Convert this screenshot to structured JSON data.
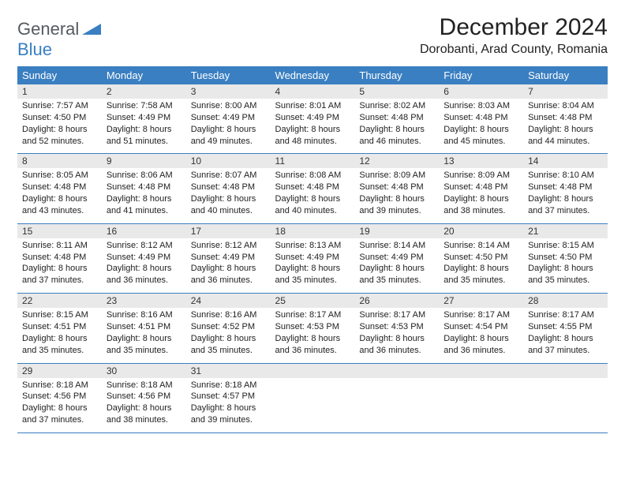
{
  "logo": {
    "word1": "General",
    "word2": "Blue"
  },
  "title": "December 2024",
  "location": "Dorobanti, Arad County, Romania",
  "colors": {
    "header_bg": "#3a7fc1",
    "header_text": "#ffffff",
    "daynum_bg": "#e9e9e9",
    "cell_border": "#3a7fc1",
    "logo_gray": "#555a5f",
    "logo_blue": "#3a7fc1"
  },
  "dayHeaders": [
    "Sunday",
    "Monday",
    "Tuesday",
    "Wednesday",
    "Thursday",
    "Friday",
    "Saturday"
  ],
  "weeks": [
    {
      "nums": [
        "1",
        "2",
        "3",
        "4",
        "5",
        "6",
        "7"
      ],
      "cells": [
        {
          "sunrise": "7:57 AM",
          "sunset": "4:50 PM",
          "daylight": "8 hours and 52 minutes."
        },
        {
          "sunrise": "7:58 AM",
          "sunset": "4:49 PM",
          "daylight": "8 hours and 51 minutes."
        },
        {
          "sunrise": "8:00 AM",
          "sunset": "4:49 PM",
          "daylight": "8 hours and 49 minutes."
        },
        {
          "sunrise": "8:01 AM",
          "sunset": "4:49 PM",
          "daylight": "8 hours and 48 minutes."
        },
        {
          "sunrise": "8:02 AM",
          "sunset": "4:48 PM",
          "daylight": "8 hours and 46 minutes."
        },
        {
          "sunrise": "8:03 AM",
          "sunset": "4:48 PM",
          "daylight": "8 hours and 45 minutes."
        },
        {
          "sunrise": "8:04 AM",
          "sunset": "4:48 PM",
          "daylight": "8 hours and 44 minutes."
        }
      ]
    },
    {
      "nums": [
        "8",
        "9",
        "10",
        "11",
        "12",
        "13",
        "14"
      ],
      "cells": [
        {
          "sunrise": "8:05 AM",
          "sunset": "4:48 PM",
          "daylight": "8 hours and 43 minutes."
        },
        {
          "sunrise": "8:06 AM",
          "sunset": "4:48 PM",
          "daylight": "8 hours and 41 minutes."
        },
        {
          "sunrise": "8:07 AM",
          "sunset": "4:48 PM",
          "daylight": "8 hours and 40 minutes."
        },
        {
          "sunrise": "8:08 AM",
          "sunset": "4:48 PM",
          "daylight": "8 hours and 40 minutes."
        },
        {
          "sunrise": "8:09 AM",
          "sunset": "4:48 PM",
          "daylight": "8 hours and 39 minutes."
        },
        {
          "sunrise": "8:09 AM",
          "sunset": "4:48 PM",
          "daylight": "8 hours and 38 minutes."
        },
        {
          "sunrise": "8:10 AM",
          "sunset": "4:48 PM",
          "daylight": "8 hours and 37 minutes."
        }
      ]
    },
    {
      "nums": [
        "15",
        "16",
        "17",
        "18",
        "19",
        "20",
        "21"
      ],
      "cells": [
        {
          "sunrise": "8:11 AM",
          "sunset": "4:48 PM",
          "daylight": "8 hours and 37 minutes."
        },
        {
          "sunrise": "8:12 AM",
          "sunset": "4:49 PM",
          "daylight": "8 hours and 36 minutes."
        },
        {
          "sunrise": "8:12 AM",
          "sunset": "4:49 PM",
          "daylight": "8 hours and 36 minutes."
        },
        {
          "sunrise": "8:13 AM",
          "sunset": "4:49 PM",
          "daylight": "8 hours and 35 minutes."
        },
        {
          "sunrise": "8:14 AM",
          "sunset": "4:49 PM",
          "daylight": "8 hours and 35 minutes."
        },
        {
          "sunrise": "8:14 AM",
          "sunset": "4:50 PM",
          "daylight": "8 hours and 35 minutes."
        },
        {
          "sunrise": "8:15 AM",
          "sunset": "4:50 PM",
          "daylight": "8 hours and 35 minutes."
        }
      ]
    },
    {
      "nums": [
        "22",
        "23",
        "24",
        "25",
        "26",
        "27",
        "28"
      ],
      "cells": [
        {
          "sunrise": "8:15 AM",
          "sunset": "4:51 PM",
          "daylight": "8 hours and 35 minutes."
        },
        {
          "sunrise": "8:16 AM",
          "sunset": "4:51 PM",
          "daylight": "8 hours and 35 minutes."
        },
        {
          "sunrise": "8:16 AM",
          "sunset": "4:52 PM",
          "daylight": "8 hours and 35 minutes."
        },
        {
          "sunrise": "8:17 AM",
          "sunset": "4:53 PM",
          "daylight": "8 hours and 36 minutes."
        },
        {
          "sunrise": "8:17 AM",
          "sunset": "4:53 PM",
          "daylight": "8 hours and 36 minutes."
        },
        {
          "sunrise": "8:17 AM",
          "sunset": "4:54 PM",
          "daylight": "8 hours and 36 minutes."
        },
        {
          "sunrise": "8:17 AM",
          "sunset": "4:55 PM",
          "daylight": "8 hours and 37 minutes."
        }
      ]
    },
    {
      "nums": [
        "29",
        "30",
        "31",
        "",
        "",
        "",
        ""
      ],
      "cells": [
        {
          "sunrise": "8:18 AM",
          "sunset": "4:56 PM",
          "daylight": "8 hours and 37 minutes."
        },
        {
          "sunrise": "8:18 AM",
          "sunset": "4:56 PM",
          "daylight": "8 hours and 38 minutes."
        },
        {
          "sunrise": "8:18 AM",
          "sunset": "4:57 PM",
          "daylight": "8 hours and 39 minutes."
        },
        null,
        null,
        null,
        null
      ]
    }
  ],
  "labels": {
    "sunrise": "Sunrise:",
    "sunset": "Sunset:",
    "daylight": "Daylight:"
  }
}
